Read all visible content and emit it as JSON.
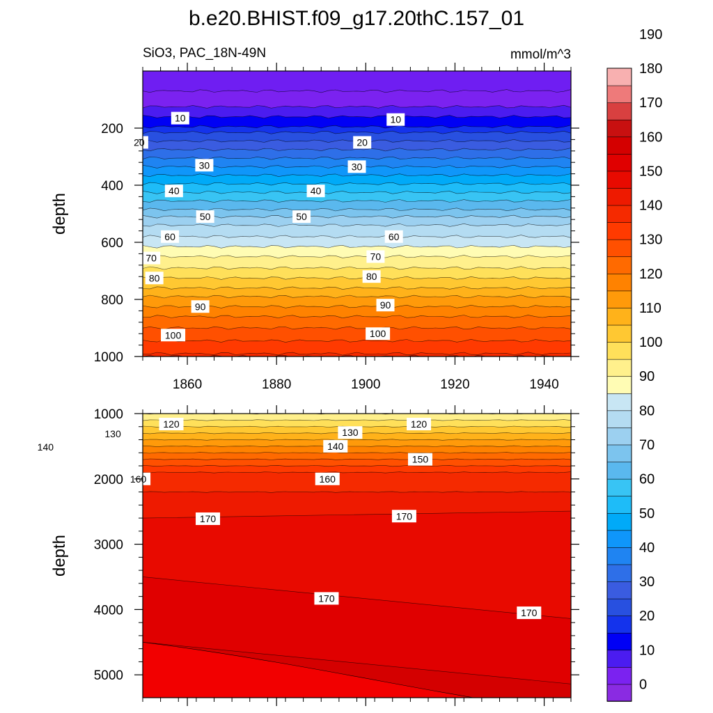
{
  "chart_data": {
    "type": "contour",
    "title": "b.e20.BHIST.f09_g17.20thC.157_01",
    "left_subtitle": "SiO3, PAC_18N-49N",
    "right_subtitle": "mmol/m^3",
    "xlabel": "",
    "x_range": [
      1850,
      1946
    ],
    "x_ticks": [
      "1860",
      "1880",
      "1900",
      "1920",
      "1940"
    ],
    "panels": [
      {
        "name": "upper",
        "ylabel": "depth",
        "y_range": [
          0,
          1000
        ],
        "y_inverted": true,
        "y_ticks": [
          "200",
          "400",
          "600",
          "800",
          "1000"
        ],
        "contour_levels": [
          0,
          5,
          10,
          15,
          20,
          25,
          30,
          35,
          40,
          45,
          50,
          55,
          60,
          65,
          70,
          75,
          80,
          85,
          90,
          95,
          100,
          105,
          110
        ],
        "level_depths": [
          70,
          125,
          160,
          195,
          215,
          245,
          275,
          305,
          335,
          365,
          395,
          425,
          455,
          485,
          510,
          540,
          580,
          615,
          650,
          690,
          725,
          760,
          790,
          825,
          860,
          900,
          945,
          990,
          1000
        ],
        "contour_labels": [
          {
            "text": "10",
            "year": 1858.4,
            "depth": 165
          },
          {
            "text": "10",
            "year": 1906.7,
            "depth": 170
          },
          {
            "text": "20",
            "year": 1849.2,
            "depth": 250
          },
          {
            "text": "20",
            "year": 1899.2,
            "depth": 250
          },
          {
            "text": "30",
            "year": 1863.8,
            "depth": 330
          },
          {
            "text": "30",
            "year": 1898.0,
            "depth": 335
          },
          {
            "text": "40",
            "year": 1857.0,
            "depth": 420
          },
          {
            "text": "40",
            "year": 1888.8,
            "depth": 420
          },
          {
            "text": "50",
            "year": 1864.0,
            "depth": 510
          },
          {
            "text": "50",
            "year": 1885.6,
            "depth": 510
          },
          {
            "text": "60",
            "year": 1856.1,
            "depth": 580
          },
          {
            "text": "60",
            "year": 1906.3,
            "depth": 580
          },
          {
            "text": "70",
            "year": 1851.9,
            "depth": 655
          },
          {
            "text": "70",
            "year": 1902.2,
            "depth": 650
          },
          {
            "text": "80",
            "year": 1852.6,
            "depth": 725
          },
          {
            "text": "80",
            "year": 1901.3,
            "depth": 720
          },
          {
            "text": "90",
            "year": 1862.9,
            "depth": 825
          },
          {
            "text": "90",
            "year": 1904.4,
            "depth": 820
          },
          {
            "text": "100",
            "year": 1856.8,
            "depth": 925
          },
          {
            "text": "100",
            "year": 1902.7,
            "depth": 920
          }
        ]
      },
      {
        "name": "lower",
        "ylabel": "depth",
        "y_range": [
          1000,
          5350
        ],
        "y_inverted": true,
        "y_ticks": [
          "1000",
          "2000",
          "3000",
          "4000",
          "5000"
        ],
        "contour_levels": [
          115,
          120,
          125,
          130,
          135,
          140,
          145,
          150,
          155,
          160,
          165,
          170,
          175
        ],
        "level_depths": [
          1000,
          1100,
          1200,
          1300,
          1400,
          1500,
          1600,
          1700,
          1800,
          1900,
          2200,
          2600,
          3500,
          4500
        ],
        "contour_labels": [
          {
            "text": "120",
            "year": 1856.4,
            "depth": 1160
          },
          {
            "text": "130",
            "year": 1843.3,
            "depth": 1310
          },
          {
            "text": "140",
            "year": 1828.2,
            "depth": 1510
          },
          {
            "text": "140",
            "year": 1893.2,
            "depth": 1500
          },
          {
            "text": "130",
            "year": 1896.5,
            "depth": 1290
          },
          {
            "text": "120",
            "year": 1911.9,
            "depth": 1160
          },
          {
            "text": "150",
            "year": 1912.2,
            "depth": 1700
          },
          {
            "text": "160",
            "year": 1849.0,
            "depth": 2000
          },
          {
            "text": "160",
            "year": 1891.4,
            "depth": 2000
          },
          {
            "text": "170",
            "year": 1864.6,
            "depth": 2610
          },
          {
            "text": "170",
            "year": 1908.6,
            "depth": 2570
          },
          {
            "text": "170",
            "year": 1891.2,
            "depth": 3830
          },
          {
            "text": "170",
            "year": 1936.6,
            "depth": 4050
          }
        ]
      }
    ],
    "colorbar": {
      "labels": [
        "0",
        "10",
        "20",
        "30",
        "40",
        "50",
        "60",
        "70",
        "80",
        "90",
        "100",
        "110",
        "120",
        "130",
        "140",
        "150",
        "160",
        "170",
        "180",
        "190"
      ],
      "colors": [
        "#8a2be2",
        "#7b22f0",
        "#4b1cf0",
        "#0000f5",
        "#1433ec",
        "#2850e0",
        "#3a5ce0",
        "#2e6fe8",
        "#1f84f2",
        "#0f96fa",
        "#00aaf8",
        "#1ebcf8",
        "#38c4f4",
        "#5ab8ee",
        "#7cc4ee",
        "#9cd0f0",
        "#b4dcf2",
        "#c8e6f4",
        "#fffcb4",
        "#fff08c",
        "#ffe05a",
        "#ffc832",
        "#ffb21a",
        "#ff9a0a",
        "#ff8200",
        "#ff6a00",
        "#ff5000",
        "#ff3a00",
        "#f52a00",
        "#ee1a00",
        "#e80a00",
        "#e00000",
        "#d40000",
        "#c81010",
        "#d84040",
        "#ee7a7a",
        "#f8b0b0"
      ]
    }
  }
}
